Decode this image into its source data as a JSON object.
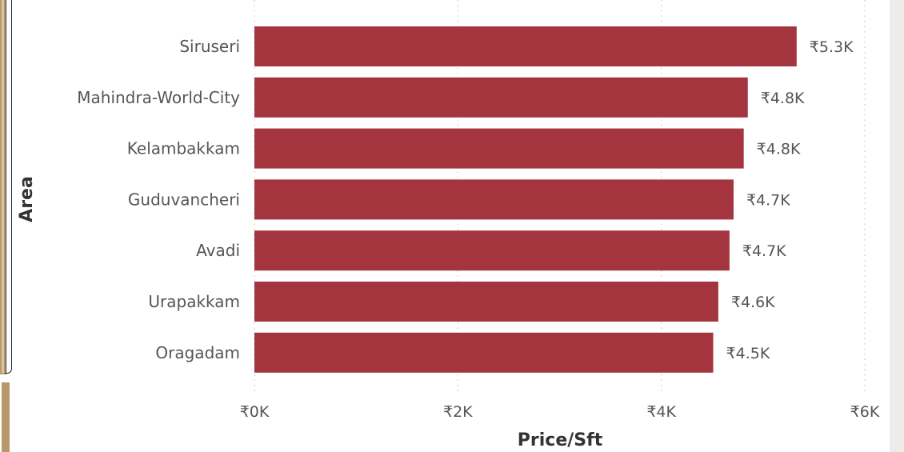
{
  "chart_data": {
    "type": "bar",
    "orientation": "horizontal",
    "categories": [
      "Siruseri",
      "Mahindra-World-City",
      "Kelambakkam",
      "Guduvancheri",
      "Avadi",
      "Urapakkam",
      "Oragadam"
    ],
    "values": [
      5330,
      4850,
      4810,
      4710,
      4670,
      4560,
      4510
    ],
    "data_labels": [
      "₹5.3K",
      "₹4.8K",
      "₹4.8K",
      "₹4.7K",
      "₹4.7K",
      "₹4.6K",
      "₹4.5K"
    ],
    "xlabel": "Price/Sft",
    "ylabel": "Area",
    "xlim": [
      0,
      6000
    ],
    "x_ticks": [
      0,
      2000,
      4000,
      6000
    ],
    "x_tick_labels": [
      "₹0K",
      "₹2K",
      "₹4K",
      "₹6K"
    ],
    "grid": "vertical dotted",
    "bar_color": "#a4343e"
  }
}
